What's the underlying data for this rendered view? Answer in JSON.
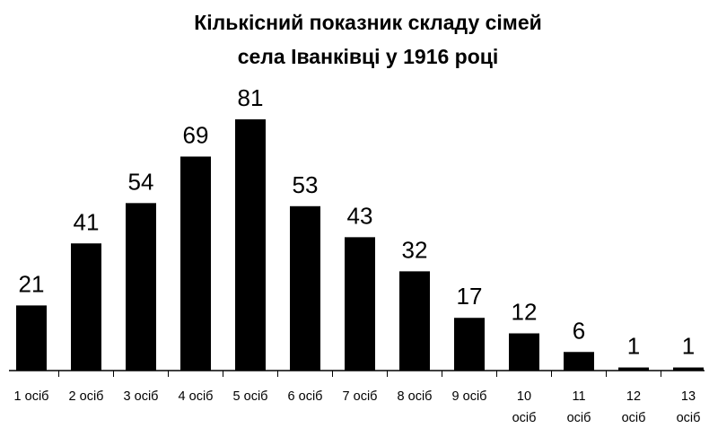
{
  "chart_data": {
    "type": "bar",
    "title": [
      "Кількісний показник складу сімей",
      "села Іванківці у 1916 році"
    ],
    "categories": [
      "1 осіб",
      "2 осіб",
      "3 осіб",
      "4 осіб",
      "5 осіб",
      "6 осіб",
      "7 осіб",
      "8 осіб",
      "9 осіб",
      "10 осіб",
      "11 осіб",
      "12 осіб",
      "13 осіб"
    ],
    "values": [
      21,
      41,
      54,
      69,
      81,
      53,
      43,
      32,
      17,
      12,
      6,
      1,
      1
    ],
    "color": "#000000"
  }
}
